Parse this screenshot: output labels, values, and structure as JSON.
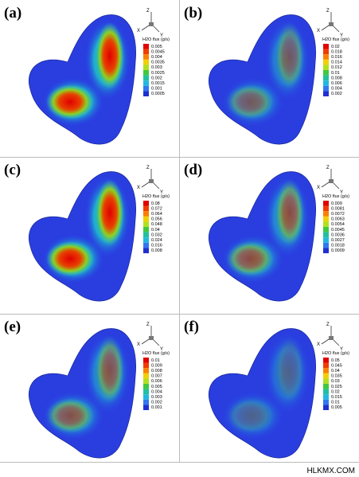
{
  "panels": [
    {
      "label": "(a)",
      "legend": {
        "title": "H2O flux (g/s)",
        "levels": [
          "0.005",
          "0.0045",
          "0.004",
          "0.0035",
          "0.003",
          "0.0025",
          "0.002",
          "0.0015",
          "0.001",
          "0.0005"
        ]
      },
      "axes": [
        "Z",
        "X",
        "Y"
      ]
    },
    {
      "label": "(b)",
      "legend": {
        "title": "H2O flux (g/s)",
        "levels": [
          "0.02",
          "0.018",
          "0.016",
          "0.014",
          "0.012",
          "0.01",
          "0.008",
          "0.006",
          "0.004",
          "0.002"
        ]
      },
      "axes": [
        "Z",
        "X",
        "Y"
      ]
    },
    {
      "label": "(c)",
      "legend": {
        "title": "H2O flux (g/s)",
        "levels": [
          "0.08",
          "0.072",
          "0.064",
          "0.056",
          "0.048",
          "0.04",
          "0.032",
          "0.024",
          "0.016",
          "0.008"
        ]
      },
      "axes": [
        "Z",
        "X",
        "Y"
      ]
    },
    {
      "label": "(d)",
      "legend": {
        "title": "H2O flux (g/s)",
        "levels": [
          "0.009",
          "0.0081",
          "0.0072",
          "0.0063",
          "0.0054",
          "0.0045",
          "0.0036",
          "0.0027",
          "0.0018",
          "0.0009"
        ]
      },
      "axes": [
        "Z",
        "X",
        "Y"
      ]
    },
    {
      "label": "(e)",
      "legend": {
        "title": "H2O flux (g/s)",
        "levels": [
          "0.01",
          "0.009",
          "0.008",
          "0.007",
          "0.006",
          "0.005",
          "0.004",
          "0.003",
          "0.002",
          "0.001"
        ]
      },
      "axes": [
        "Z",
        "X",
        "Y"
      ]
    },
    {
      "label": "(f)",
      "legend": {
        "title": "H2O flux (g/s)",
        "levels": [
          "0.05",
          "0.045",
          "0.04",
          "0.035",
          "0.03",
          "0.025",
          "0.02",
          "0.015",
          "0.01",
          "0.005"
        ]
      },
      "axes": [
        "Z",
        "X",
        "Y"
      ]
    }
  ],
  "watermark": "HLKMX.COM"
}
